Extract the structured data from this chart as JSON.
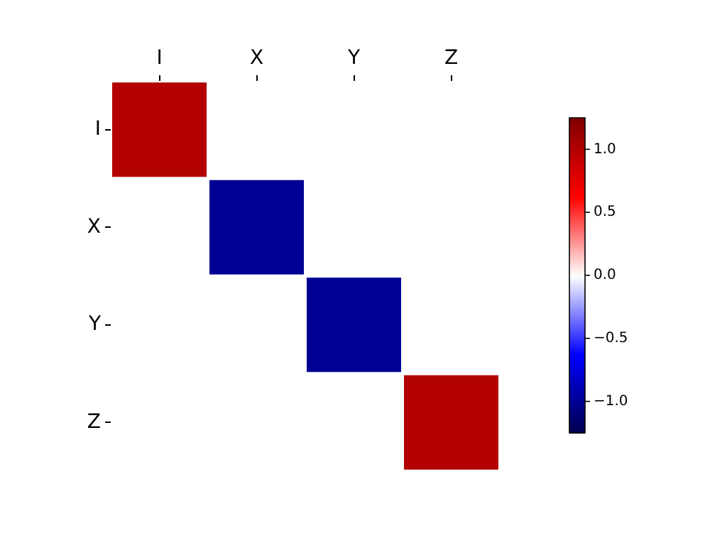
{
  "chart_data": {
    "type": "heatmap",
    "categories": [
      "I",
      "X",
      "Y",
      "Z"
    ],
    "y_categories": [
      "I",
      "X",
      "Y",
      "Z"
    ],
    "cells": [
      [
        1,
        0,
        0,
        0
      ],
      [
        0,
        -1,
        0,
        0
      ],
      [
        0,
        0,
        -1,
        0
      ],
      [
        0,
        0,
        0,
        1
      ]
    ],
    "clim": [
      -1.25,
      1.25
    ],
    "cticks": [
      {
        "value": -1,
        "label": "−1.0"
      },
      {
        "value": -0.5,
        "label": "−0.5"
      },
      {
        "value": 0,
        "label": "0.0"
      },
      {
        "value": 0.5,
        "label": "0.5"
      },
      {
        "value": 1,
        "label": "1.0"
      }
    ],
    "grid": false
  }
}
